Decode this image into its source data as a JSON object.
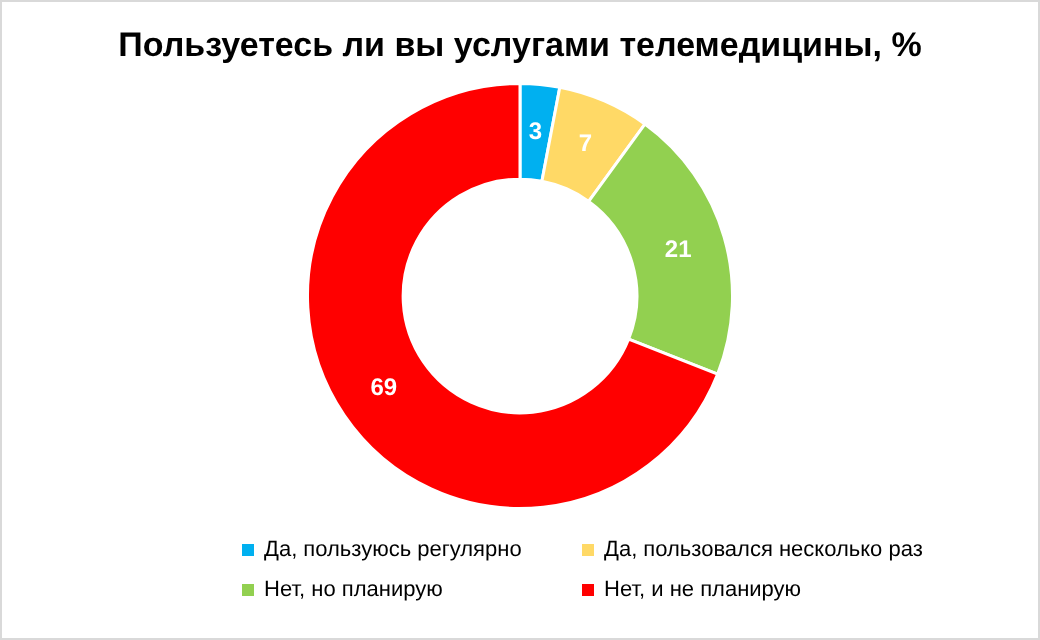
{
  "chart_data": {
    "type": "donut",
    "title": "Пользуетесь ли вы услугами телемедицины, %",
    "categories": [
      "Да, пользуюсь регулярно",
      "Да, пользовался несколько раз",
      "Нет, но планирую",
      "Нет, и не планирую"
    ],
    "values": [
      3,
      7,
      21,
      69
    ],
    "colors": [
      "#00b0f0",
      "#ffd966",
      "#92d050",
      "#ff0000"
    ],
    "data_labels": true,
    "legend": "bottom"
  }
}
